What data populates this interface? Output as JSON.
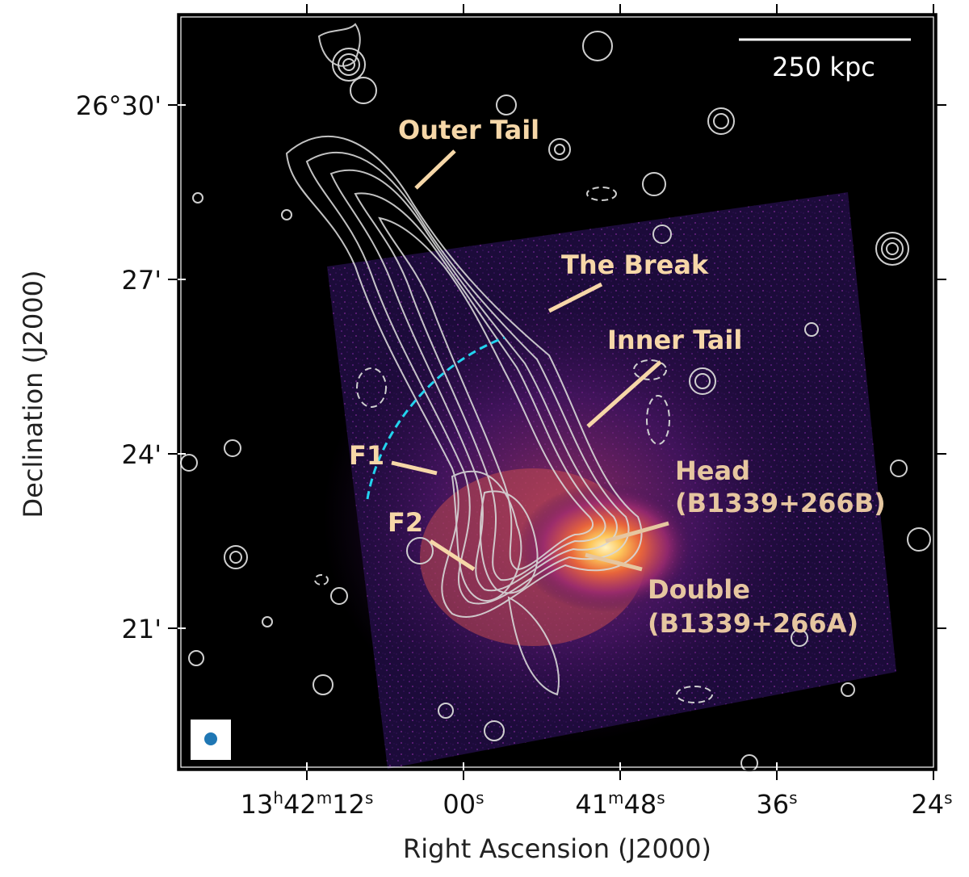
{
  "axes": {
    "xlabel": "Right Ascension (J2000)",
    "ylabel": "Declination (J2000)",
    "x_ticks": [
      {
        "h": "13",
        "m": "42",
        "s": "12"
      },
      {
        "h": "",
        "m": "",
        "s": "00"
      },
      {
        "h": "",
        "m": "41",
        "s": "48"
      },
      {
        "h": "",
        "m": "",
        "s": "36"
      },
      {
        "h": "",
        "m": "",
        "s": "24"
      }
    ],
    "y_ticks": [
      "26°30'",
      "27'",
      "24'",
      "21'"
    ]
  },
  "scale_bar": {
    "label": "250 kpc"
  },
  "annotations": {
    "outer_tail": "Outer Tail",
    "the_break": "The Break",
    "inner_tail": "Inner Tail",
    "f1": "F1",
    "f2": "F2",
    "head_line1": "Head",
    "head_line2": "(B1339+266B)",
    "double_line1": "Double",
    "double_line2": "(B1339+266A)"
  },
  "colors": {
    "background": "#000000",
    "annotation_text": "#f6d7a8",
    "contours": "#d8d8d8",
    "shock_arc": "#22d3ee",
    "beam": "#1f77b4"
  }
}
